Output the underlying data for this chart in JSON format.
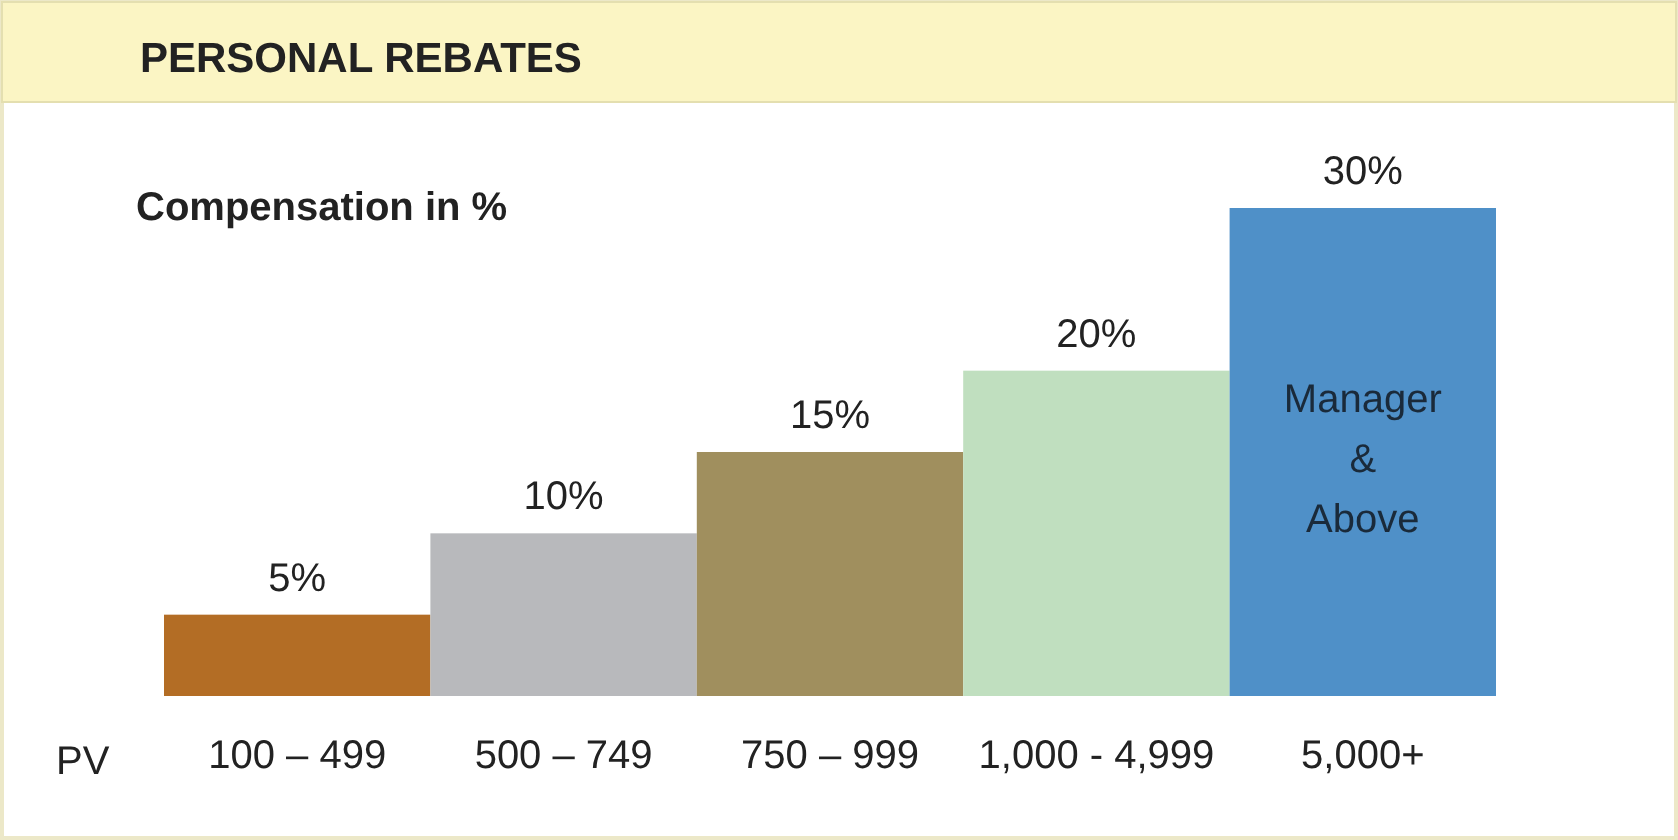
{
  "chart_data": {
    "type": "bar",
    "title": "PERSONAL REBATES",
    "ylabel": "Compensation in %",
    "xlabel": "PV",
    "categories": [
      "100 – 499",
      "500 – 749",
      "750 – 999",
      "1,000 - 4,999",
      "5,000+"
    ],
    "values": [
      5,
      10,
      15,
      20,
      30
    ],
    "colors": [
      "#b36d25",
      "#b8b9bc",
      "#a08f5e",
      "#c0dfbf",
      "#4f90c8"
    ],
    "value_labels": [
      "5%",
      "10%",
      "15%",
      "20%",
      "30%"
    ],
    "annotations": [
      "Manager & Above"
    ]
  }
}
